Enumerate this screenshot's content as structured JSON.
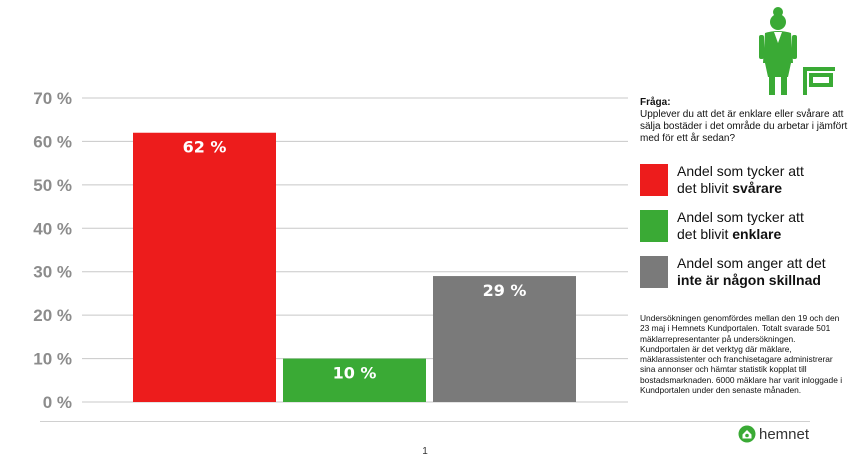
{
  "chart_data": {
    "type": "bar",
    "categories": [
      "svårare",
      "enklare",
      "inte någon skillnad"
    ],
    "values": [
      62,
      10,
      29
    ],
    "data_labels": [
      "62 %",
      "10 %",
      "29 %"
    ],
    "colors": [
      "#ed1c1c",
      "#3aaa35",
      "#7a7a7a"
    ],
    "ylim": [
      0,
      70
    ],
    "yticks": [
      0,
      10,
      20,
      30,
      40,
      50,
      60,
      70
    ],
    "ytick_labels": [
      "0 %",
      "10 %",
      "20 %",
      "30 %",
      "40 %",
      "50 %",
      "60 %",
      "70 %"
    ],
    "grid": true,
    "legend_placement": "right",
    "title": "",
    "xlabel": "",
    "ylabel": ""
  },
  "question": {
    "title": "Fråga:",
    "text": "Upplever du att det är enklare eller svårare att sälja bostäder i det område du arbetar i jämfört med för ett år sedan?"
  },
  "legend": [
    {
      "line1": "Andel som tycker att",
      "line2_prefix": "det blivit ",
      "line2_bold": "svårare",
      "color": "#ed1c1c"
    },
    {
      "line1": "Andel som tycker att",
      "line2_prefix": "det blivit ",
      "line2_bold": "enklare",
      "color": "#3aaa35"
    },
    {
      "line1": "Andel som anger att det",
      "line2_prefix": "",
      "line2_bold": "inte är någon skillnad",
      "color": "#7a7a7a"
    }
  ],
  "footnote": "Undersökningen genomfördes mellan den 19 och den 23 maj i Hemnets Kundportalen. Totalt svarade 501 mäklarrepresentanter på undersökningen. Kundportalen är det verktyg där mäklare, mäklarassistenter och franchisetagare administrerar sina annonser och hämtar statistik kopplat till bostadsmarknaden. 6000 mäklare har varit inloggade i Kundportalen under den senaste månaden.",
  "footer": {
    "brand": "hemnet",
    "page_number": "1"
  },
  "icons": {
    "illustration": "woman-with-sign-icon",
    "logo": "hemnet-house-icon"
  }
}
